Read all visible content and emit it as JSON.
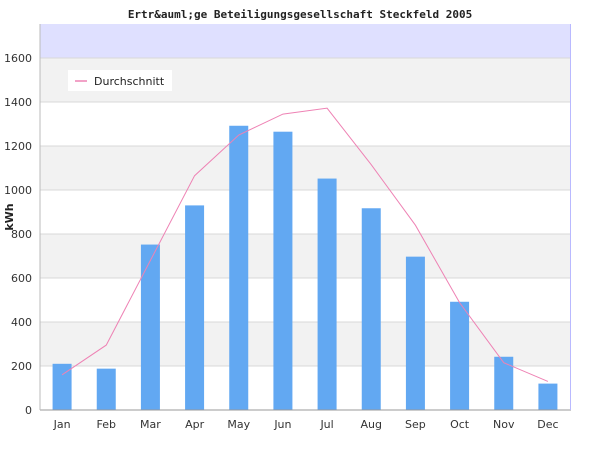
{
  "colors": {
    "bar": "#62a8f2",
    "line": "#ee82b4",
    "band": "#f2f2f2",
    "top_band": "#dfe0ff",
    "grid": "#d8d8d8",
    "axis": "#b9b9ff"
  },
  "chart_data": {
    "type": "bar",
    "title": "Ertr&auml;ge Beteiligungsgesellschaft Steckfeld 2005",
    "xlabel": "",
    "ylabel": "kWh",
    "categories": [
      "Jan",
      "Feb",
      "Mar",
      "Apr",
      "May",
      "Jun",
      "Jul",
      "Aug",
      "Sep",
      "Oct",
      "Nov",
      "Dec"
    ],
    "values": [
      210,
      188,
      752,
      930,
      1292,
      1265,
      1052,
      917,
      697,
      492,
      242,
      120
    ],
    "line_series": {
      "name": "Durchschnitt",
      "values": [
        160,
        295,
        680,
        1065,
        1250,
        1345,
        1372,
        1115,
        840,
        488,
        215,
        130
      ]
    },
    "ylim": [
      0,
      1750
    ],
    "yticks": [
      0,
      200,
      400,
      600,
      800,
      1000,
      1200,
      1400,
      1600
    ],
    "grid": true,
    "legend_position": "top-left"
  }
}
